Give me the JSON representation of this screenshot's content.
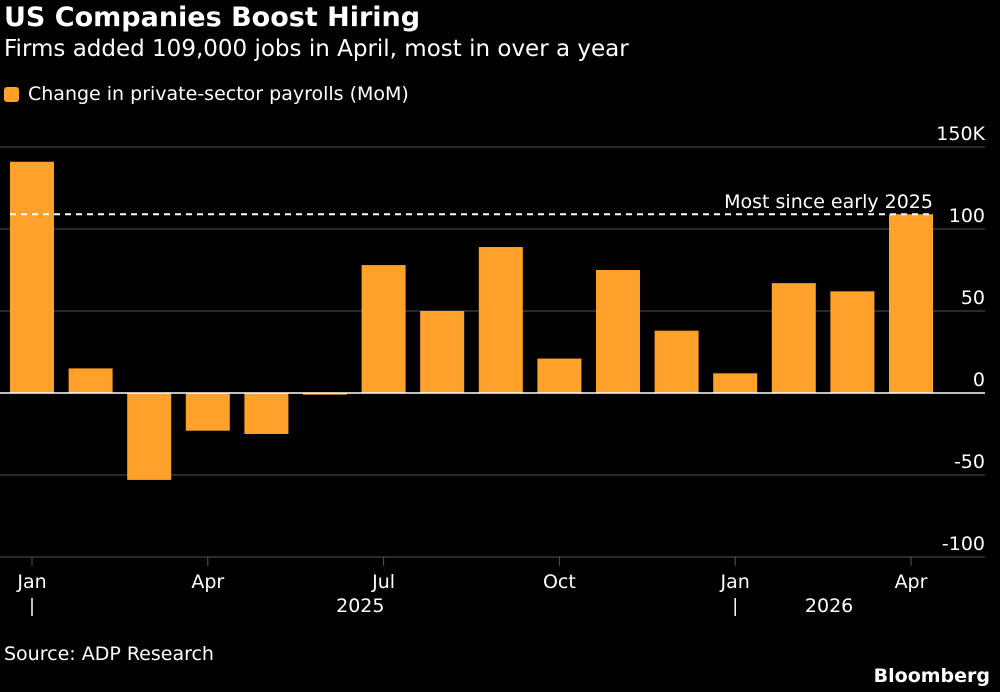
{
  "header": {
    "title": "US Companies Boost Hiring",
    "subtitle": "Firms added 109,000 jobs in April, most in over a year"
  },
  "legend": {
    "label": "Change in private-sector payrolls (MoM)",
    "color": "#FFA12B"
  },
  "footer": {
    "source": "Source: ADP Research",
    "brand": "Bloomberg"
  },
  "colors": {
    "background": "#000000",
    "bar": "#FFA12B",
    "grid": "#555555",
    "zero_line": "#ffffff",
    "text": "#ffffff"
  },
  "chart_data": {
    "type": "bar",
    "categories": [
      "Jan 2025",
      "Feb 2025",
      "Mar 2025",
      "Apr 2025",
      "May 2025",
      "Jun 2025",
      "Jul 2025",
      "Aug 2025",
      "Sep 2025",
      "Oct 2025",
      "Nov 2025",
      "Dec 2025",
      "Jan 2026",
      "Feb 2026",
      "Mar 2026",
      "Apr 2026"
    ],
    "series": [
      {
        "values": [
          141,
          15,
          -53,
          -23,
          -25,
          -1,
          78,
          50,
          89,
          21,
          75,
          38,
          12,
          67,
          62,
          109
        ]
      }
    ],
    "ylim": [
      -100,
      150
    ],
    "y_ticks": [
      150,
      100,
      50,
      0,
      -50,
      -100
    ],
    "y_tick_labels": [
      "150K",
      "100",
      "50",
      "0",
      "-50",
      "-100"
    ],
    "y_axis_position": "right",
    "grid": true,
    "x_tick_labels": [
      {
        "index": 0,
        "label": "Jan"
      },
      {
        "index": 3,
        "label": "Apr"
      },
      {
        "index": 6,
        "label": "Jul"
      },
      {
        "index": 9,
        "label": "Oct"
      },
      {
        "index": 12,
        "label": "Jan"
      },
      {
        "index": 15,
        "label": "Apr"
      }
    ],
    "year_labels": [
      {
        "label": "2025",
        "from_index": 0,
        "to_index": 11
      },
      {
        "label": "2026",
        "from_index": 12,
        "to_index": 15
      }
    ],
    "reference_line": {
      "value": 109,
      "style": "dashed",
      "label": "Most since early 2025"
    }
  }
}
